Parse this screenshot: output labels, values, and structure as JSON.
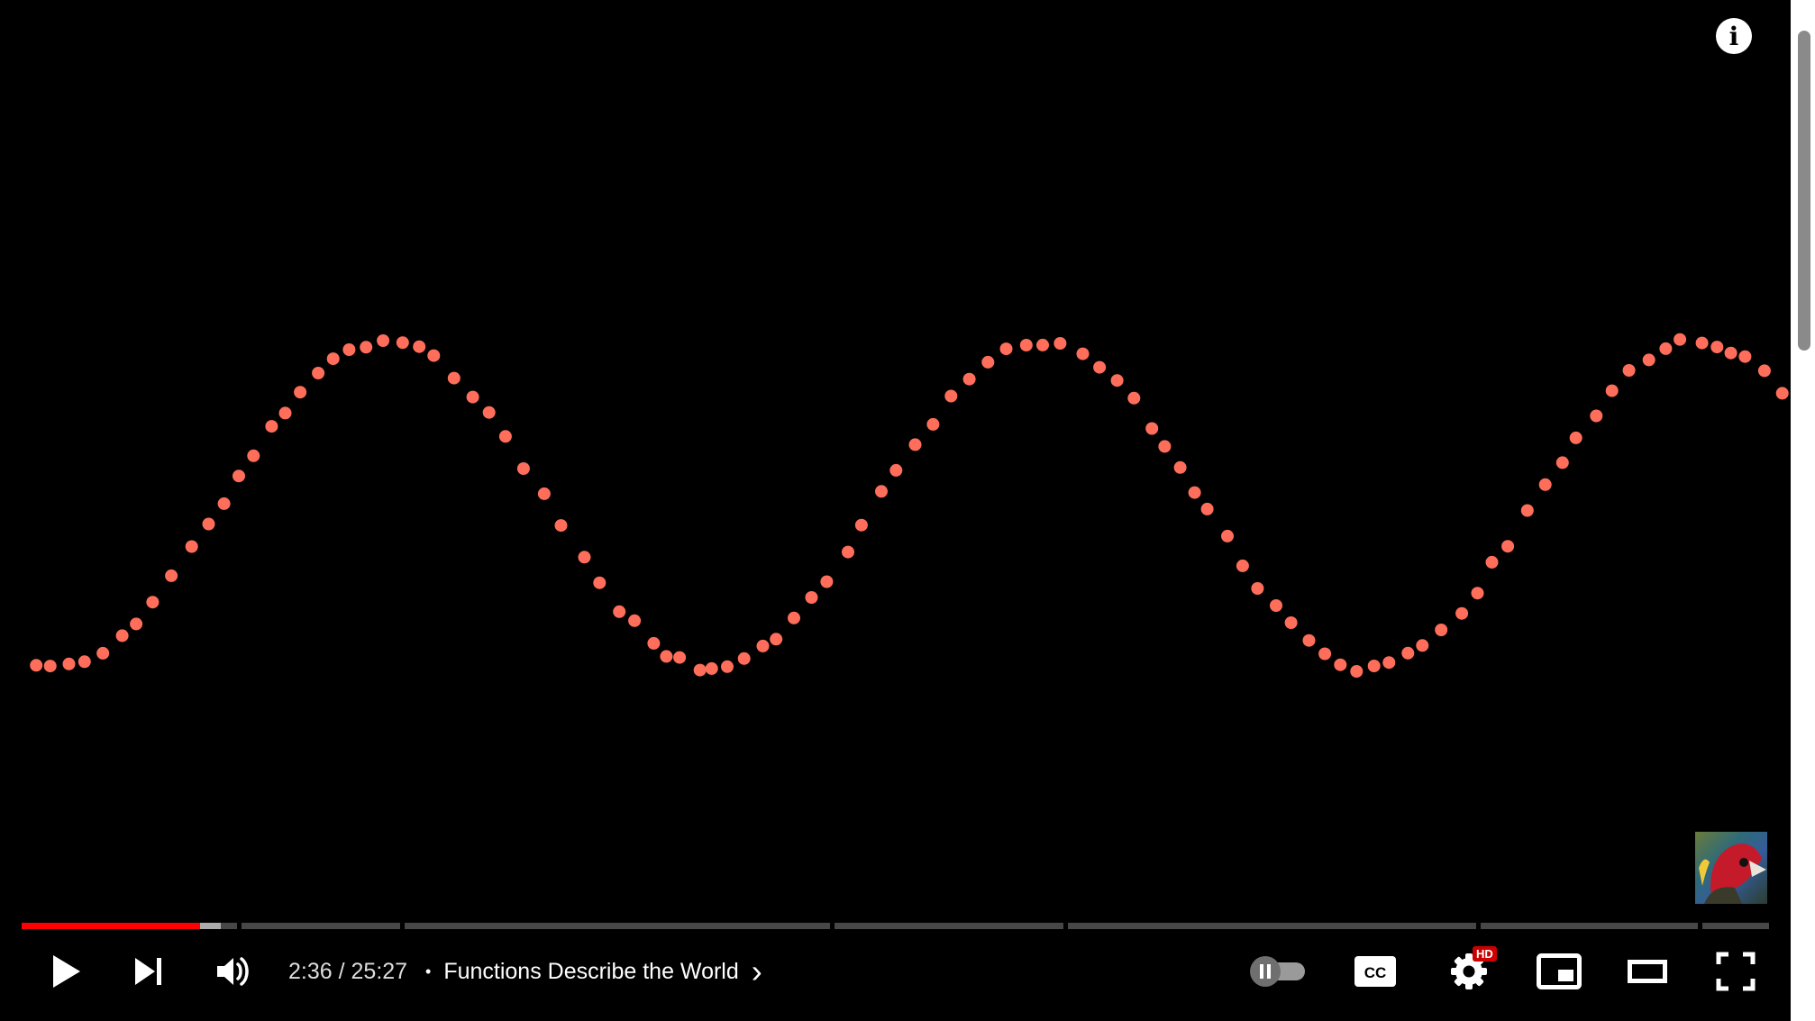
{
  "player": {
    "time": {
      "current": "2:36",
      "separator": " / ",
      "duration": "25:27"
    },
    "progress": {
      "played_fraction": 0.102,
      "buffered_fraction": 0.114,
      "chapter_markers": [
        0.126,
        0.219,
        0.465,
        0.599,
        0.835,
        0.962
      ]
    },
    "chapter": {
      "dot": "•",
      "title": "Functions Describe the World",
      "chevron": "›"
    },
    "badges": {
      "hd": "HD"
    },
    "controls": {
      "play": "play-icon",
      "next": "next-icon",
      "volume": "volume-icon",
      "autoplay": "autoplay-toggle-icon",
      "captions": "cc-icon",
      "settings": "gear-icon",
      "miniplayer": "miniplayer-icon",
      "theater": "theater-mode-icon",
      "fullscreen": "fullscreen-icon",
      "info": "info-icon"
    },
    "colors": {
      "played": "#ff0000",
      "points": "#ff6e5a",
      "background": "#000000"
    }
  }
}
